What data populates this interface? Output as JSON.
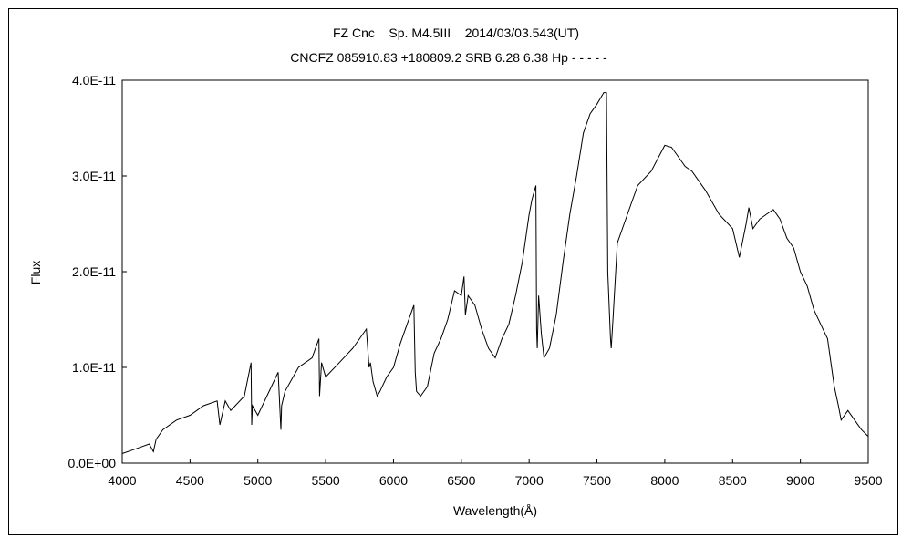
{
  "chart_data": {
    "type": "line",
    "title_line1": "FZ Cnc    Sp. M4.5III    2014/03/03.543(UT)",
    "title_line2": "CNCFZ 085910.83 +180809.2 SRB 6.28 6.38 Hp - - - - -",
    "xlabel": "Wavelength(Å)",
    "ylabel": "Flux",
    "xlim": [
      4000,
      9500
    ],
    "ylim": [
      0,
      4e-11
    ],
    "xticks": [
      4000,
      4500,
      5000,
      5500,
      6000,
      6500,
      7000,
      7500,
      8000,
      8500,
      9000,
      9500
    ],
    "xtick_labels": [
      "4000",
      "4500",
      "5000",
      "5500",
      "6000",
      "6500",
      "7000",
      "7500",
      "8000",
      "8500",
      "9000",
      "9500"
    ],
    "yticks": [
      0,
      1e-11,
      2e-11,
      3e-11,
      4e-11
    ],
    "ytick_labels": [
      "0.0E+00",
      "1.0E-11",
      "2.0E-11",
      "3.0E-11",
      "4.0E-11"
    ],
    "grid": false,
    "line_color": "#000000",
    "series": [
      {
        "x": [
          4000,
          4100,
          4200,
          4230,
          4250,
          4300,
          4400,
          4500,
          4600,
          4700,
          4720,
          4760,
          4800,
          4900,
          4950,
          4955,
          4960,
          5000,
          5100,
          5150,
          5170,
          5175,
          5200,
          5300,
          5400,
          5450,
          5455,
          5470,
          5500,
          5600,
          5700,
          5750,
          5800,
          5820,
          5830,
          5850,
          5880,
          5900,
          5950,
          6000,
          6050,
          6100,
          6150,
          6160,
          6170,
          6200,
          6250,
          6300,
          6350,
          6400,
          6450,
          6500,
          6520,
          6530,
          6550,
          6600,
          6650,
          6700,
          6750,
          6800,
          6850,
          6900,
          6950,
          7000,
          7020,
          7040,
          7050,
          7055,
          7060,
          7070,
          7090,
          7110,
          7150,
          7200,
          7250,
          7300,
          7350,
          7400,
          7450,
          7500,
          7550,
          7570,
          7580,
          7600,
          7605,
          7620,
          7650,
          7700,
          7750,
          7800,
          7900,
          8000,
          8050,
          8100,
          8150,
          8200,
          8300,
          8400,
          8500,
          8550,
          8600,
          8620,
          8650,
          8700,
          8750,
          8800,
          8850,
          8900,
          8950,
          9000,
          9050,
          9100,
          9150,
          9200,
          9230,
          9250,
          9280,
          9300,
          9350,
          9400,
          9450,
          9500
        ],
        "y": [
          1e-12,
          1.5e-12,
          2e-12,
          1.2e-12,
          2.5e-12,
          3.5e-12,
          4.5e-12,
          5e-12,
          6e-12,
          6.5e-12,
          4e-12,
          6.5e-12,
          5.5e-12,
          7e-12,
          1.05e-11,
          4e-12,
          6e-12,
          5e-12,
          8e-12,
          9.5e-12,
          3.5e-12,
          6e-12,
          7.5e-12,
          1e-11,
          1.1e-11,
          1.3e-11,
          7e-12,
          1.05e-11,
          9e-12,
          1.05e-11,
          1.2e-11,
          1.3e-11,
          1.4e-11,
          1e-11,
          1.05e-11,
          8.5e-12,
          7e-12,
          7.5e-12,
          9e-12,
          1e-11,
          1.25e-11,
          1.45e-11,
          1.65e-11,
          9.5e-12,
          7.5e-12,
          7e-12,
          8e-12,
          1.15e-11,
          1.3e-11,
          1.5e-11,
          1.8e-11,
          1.75e-11,
          1.95e-11,
          1.55e-11,
          1.75e-11,
          1.65e-11,
          1.4e-11,
          1.2e-11,
          1.1e-11,
          1.3e-11,
          1.45e-11,
          1.75e-11,
          2.1e-11,
          2.6e-11,
          2.75e-11,
          2.85e-11,
          2.9e-11,
          1.4e-11,
          1.2e-11,
          1.75e-11,
          1.35e-11,
          1.1e-11,
          1.2e-11,
          1.55e-11,
          2.1e-11,
          2.6e-11,
          3e-11,
          3.45e-11,
          3.65e-11,
          3.75e-11,
          3.87e-11,
          3.87e-11,
          2e-11,
          1.3e-11,
          1.2e-11,
          1.55e-11,
          2.3e-11,
          2.5e-11,
          2.7e-11,
          2.9e-11,
          3.05e-11,
          3.32e-11,
          3.3e-11,
          3.2e-11,
          3.1e-11,
          3.05e-11,
          2.85e-11,
          2.6e-11,
          2.45e-11,
          2.15e-11,
          2.5e-11,
          2.67e-11,
          2.45e-11,
          2.55e-11,
          2.6e-11,
          2.65e-11,
          2.55e-11,
          2.35e-11,
          2.25e-11,
          2e-11,
          1.85e-11,
          1.6e-11,
          1.45e-11,
          1.3e-11,
          1e-11,
          8e-12,
          6e-12,
          4.5e-12,
          5.5e-12,
          4.5e-12,
          3.5e-12,
          2.8e-12
        ]
      }
    ]
  }
}
